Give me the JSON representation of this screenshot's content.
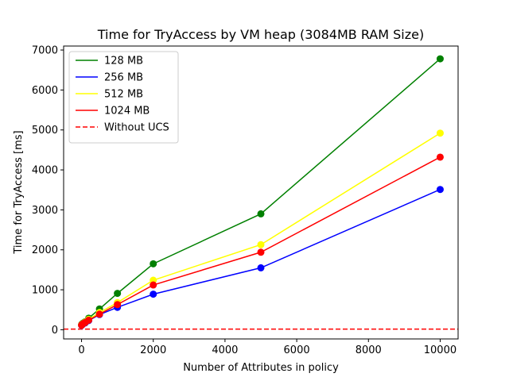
{
  "chart_data": {
    "type": "line",
    "title": "Time for TryAccess by VM heap (3084MB RAM Size)",
    "xlabel": "Number of Attributes in policy",
    "ylabel": "Time for TryAccess [ms]",
    "xlim": [
      -500,
      10500
    ],
    "ylim": [
      -230,
      7100
    ],
    "xticks": [
      0,
      2000,
      4000,
      6000,
      8000,
      10000
    ],
    "yticks": [
      0,
      1000,
      2000,
      3000,
      4000,
      5000,
      6000,
      7000
    ],
    "grid": false,
    "legend_position": "upper-left",
    "x": [
      1,
      10,
      20,
      50,
      100,
      200,
      500,
      1000,
      2000,
      5000,
      10000
    ],
    "series": [
      {
        "name": "128 MB",
        "color": "#008000",
        "values": [
          130,
          140,
          150,
          170,
          200,
          290,
          520,
          910,
          1650,
          2900,
          6780
        ]
      },
      {
        "name": "256 MB",
        "color": "#0000ff",
        "values": [
          110,
          120,
          130,
          150,
          170,
          230,
          380,
          560,
          890,
          1550,
          3510
        ]
      },
      {
        "name": "512 MB",
        "color": "#ffff00",
        "values": [
          120,
          130,
          140,
          160,
          190,
          260,
          430,
          680,
          1240,
          2130,
          4920
        ]
      },
      {
        "name": "1024 MB",
        "color": "#ff0000",
        "values": [
          115,
          125,
          135,
          155,
          180,
          240,
          390,
          630,
          1120,
          1940,
          4320
        ]
      }
    ],
    "reference_line": {
      "name": "Without UCS",
      "color": "#ff0000",
      "style": "dashed",
      "y": 15
    }
  }
}
